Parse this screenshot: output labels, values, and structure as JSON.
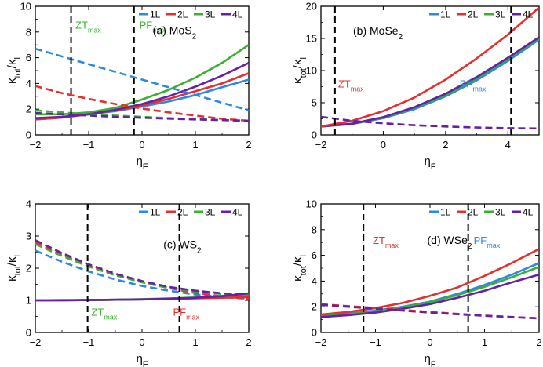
{
  "figure": {
    "ylabel_main": "κ",
    "ylabel_sub1": "tot",
    "ylabel_slash": "/κ",
    "ylabel_sub2": "l",
    "xlabel_main": "η",
    "xlabel_sub": "F"
  },
  "colors": {
    "1L": "#2b88e5",
    "2L": "#e62e2e",
    "3L": "#3ab02e",
    "4L": "#6420a8",
    "marker": "#000000"
  },
  "chart_data": [
    {
      "type": "line",
      "id": "a",
      "title_prefix": "(a) MoS",
      "title_sub": "2",
      "xlim": [
        -2,
        2
      ],
      "ylim": [
        0,
        10
      ],
      "xticks": [
        "−2",
        "−1",
        "0",
        "1",
        "2"
      ],
      "yticks": [
        "0",
        "2",
        "4",
        "6",
        "8",
        "10"
      ],
      "legend": [
        "1L",
        "2L",
        "3L",
        "4L"
      ],
      "vlines": [
        -1.33,
        -0.15
      ],
      "annotations": [
        {
          "main": "ZT",
          "sub": "max",
          "x": -1.25,
          "y": 8.25,
          "color": "3L"
        },
        {
          "main": "PF",
          "sub": "max",
          "x": -0.05,
          "y": 8.25,
          "color": "3L"
        }
      ],
      "x": [
        -2,
        -1.5,
        -1,
        -0.5,
        0,
        0.5,
        1,
        1.5,
        2
      ],
      "series": [
        {
          "name": "1L",
          "style": "solid",
          "values": [
            1.2,
            1.35,
            1.6,
            1.85,
            2.2,
            2.6,
            3.1,
            3.7,
            4.3
          ]
        },
        {
          "name": "2L",
          "style": "solid",
          "values": [
            1.2,
            1.35,
            1.6,
            1.9,
            2.3,
            2.8,
            3.4,
            4.0,
            4.8
          ]
        },
        {
          "name": "3L",
          "style": "solid",
          "values": [
            1.6,
            1.6,
            1.75,
            2.1,
            2.75,
            3.5,
            4.45,
            5.6,
            7.0
          ]
        },
        {
          "name": "4L",
          "style": "solid",
          "values": [
            1.3,
            1.4,
            1.6,
            1.95,
            2.4,
            3.0,
            3.75,
            4.6,
            5.6
          ]
        },
        {
          "name": "1L",
          "style": "dashed",
          "values": [
            6.7,
            6.1,
            5.5,
            4.9,
            4.3,
            3.7,
            3.1,
            2.5,
            1.9
          ]
        },
        {
          "name": "2L",
          "style": "dashed",
          "values": [
            3.8,
            3.25,
            2.8,
            2.4,
            2.05,
            1.75,
            1.5,
            1.25,
            1.1
          ]
        },
        {
          "name": "3L",
          "style": "dashed",
          "values": [
            1.9,
            1.75,
            1.6,
            1.5,
            1.4,
            1.3,
            1.22,
            1.15,
            1.08
          ]
        },
        {
          "name": "4L",
          "style": "dashed",
          "values": [
            1.7,
            1.6,
            1.5,
            1.4,
            1.33,
            1.26,
            1.2,
            1.15,
            1.1
          ]
        }
      ]
    },
    {
      "type": "line",
      "id": "b",
      "title_prefix": "(b) MoSe",
      "title_sub": "2",
      "xlim": [
        -2,
        5
      ],
      "ylim": [
        0,
        20
      ],
      "xticks": [
        "−2",
        "0",
        "2",
        "4"
      ],
      "xtick_values": [
        -2,
        0,
        2,
        4
      ],
      "yticks": [
        "0",
        "5",
        "10",
        "15",
        "20"
      ],
      "legend": [
        "1L",
        "2L",
        "3L",
        "4L"
      ],
      "vlines": [
        -1.55,
        4.1
      ],
      "annotations": [
        {
          "main": "ZT",
          "sub": "max",
          "x": -1.45,
          "y": 7.4,
          "color": "2L"
        },
        {
          "main": "PF",
          "sub": "max",
          "x": 2.45,
          "y": 7.4,
          "color": "1L"
        }
      ],
      "x": [
        -2,
        -1,
        0,
        1,
        2,
        3,
        4,
        5
      ],
      "series": [
        {
          "name": "1L",
          "style": "solid",
          "values": [
            1.3,
            1.7,
            2.6,
            4.0,
            6.0,
            8.5,
            11.5,
            14.8
          ]
        },
        {
          "name": "3L",
          "style": "solid",
          "values": [
            1.3,
            1.7,
            2.7,
            4.2,
            6.2,
            8.8,
            11.8,
            15.0
          ]
        },
        {
          "name": "4L",
          "style": "solid",
          "values": [
            1.3,
            1.75,
            2.75,
            4.3,
            6.4,
            9.0,
            12.0,
            15.2
          ]
        },
        {
          "name": "2L",
          "style": "solid",
          "values": [
            1.3,
            2.2,
            3.7,
            5.8,
            8.6,
            11.9,
            15.6,
            19.8
          ]
        },
        {
          "name": "4L",
          "style": "dashed",
          "values": [
            2.8,
            2.2,
            1.8,
            1.5,
            1.3,
            1.15,
            1.05,
            1.0
          ]
        }
      ]
    },
    {
      "type": "line",
      "id": "c",
      "title_prefix": "(c) WS",
      "title_sub": "2",
      "xlim": [
        -2,
        2
      ],
      "ylim": [
        0,
        4
      ],
      "xticks": [
        "−2",
        "−1",
        "0",
        "1",
        "2"
      ],
      "yticks": [
        "0",
        "1",
        "2",
        "3",
        "4"
      ],
      "legend": [
        "1L",
        "2L",
        "3L",
        "4L"
      ],
      "vlines": [
        -1.02,
        0.7
      ],
      "annotations": [
        {
          "main": "ZT",
          "sub": "max",
          "x": -0.95,
          "y": 0.52,
          "color": "3L"
        },
        {
          "main": "PF",
          "sub": "max",
          "x": 0.58,
          "y": 0.52,
          "color": "2L"
        }
      ],
      "x": [
        -2,
        -1.5,
        -1,
        -0.5,
        0,
        0.5,
        1,
        1.5,
        2
      ],
      "series": [
        {
          "name": "1L",
          "style": "dashed",
          "values": [
            2.55,
            2.2,
            1.9,
            1.65,
            1.45,
            1.3,
            1.18,
            1.1,
            1.05
          ]
        },
        {
          "name": "2L",
          "style": "dashed",
          "values": [
            2.8,
            2.42,
            2.08,
            1.8,
            1.57,
            1.38,
            1.23,
            1.12,
            1.05
          ]
        },
        {
          "name": "3L",
          "style": "dashed",
          "values": [
            2.75,
            2.38,
            2.05,
            1.78,
            1.56,
            1.39,
            1.27,
            1.2,
            1.15
          ]
        },
        {
          "name": "4L",
          "style": "dashed",
          "values": [
            2.87,
            2.47,
            2.12,
            1.83,
            1.6,
            1.42,
            1.3,
            1.22,
            1.17
          ]
        },
        {
          "name": "1L",
          "style": "solid",
          "values": [
            1.0,
            1.0,
            1.01,
            1.02,
            1.03,
            1.05,
            1.08,
            1.12,
            1.18
          ]
        },
        {
          "name": "2L",
          "style": "solid",
          "values": [
            1.0,
            1.01,
            1.01,
            1.02,
            1.03,
            1.04,
            1.06,
            1.08,
            1.1
          ]
        },
        {
          "name": "3L",
          "style": "solid",
          "values": [
            1.0,
            1.0,
            1.01,
            1.02,
            1.04,
            1.06,
            1.09,
            1.14,
            1.2
          ]
        },
        {
          "name": "4L",
          "style": "solid",
          "values": [
            1.0,
            1.0,
            1.01,
            1.02,
            1.03,
            1.05,
            1.08,
            1.13,
            1.22
          ]
        }
      ]
    },
    {
      "type": "line",
      "id": "d",
      "title_prefix": "(d) WSe",
      "title_sub": "2",
      "xlim": [
        -2,
        2
      ],
      "ylim": [
        0,
        10
      ],
      "xticks": [
        "−2",
        "−1",
        "0",
        "1",
        "2"
      ],
      "yticks": [
        "0",
        "2",
        "4",
        "6",
        "8",
        "10"
      ],
      "legend": [
        "1L",
        "2L",
        "3L",
        "4L"
      ],
      "vlines": [
        -1.22,
        0.7
      ],
      "annotations": [
        {
          "main": "ZT",
          "sub": "max",
          "x": -1.05,
          "y": 6.9,
          "color": "2L"
        },
        {
          "main": "PF",
          "sub": "max",
          "x": 0.8,
          "y": 6.9,
          "color": "1L"
        }
      ],
      "x": [
        -2,
        -1.5,
        -1,
        -0.5,
        0,
        0.5,
        1,
        1.5,
        2
      ],
      "series": [
        {
          "name": "1L",
          "style": "solid",
          "values": [
            1.3,
            1.45,
            1.7,
            2.0,
            2.4,
            3.0,
            3.7,
            4.5,
            5.4
          ]
        },
        {
          "name": "3L",
          "style": "solid",
          "values": [
            1.3,
            1.42,
            1.65,
            1.95,
            2.35,
            2.9,
            3.55,
            4.3,
            5.1
          ]
        },
        {
          "name": "4L",
          "style": "solid",
          "values": [
            1.2,
            1.35,
            1.55,
            1.85,
            2.2,
            2.7,
            3.25,
            3.9,
            4.5
          ]
        },
        {
          "name": "2L",
          "style": "solid",
          "values": [
            1.4,
            1.6,
            1.9,
            2.3,
            2.85,
            3.5,
            4.4,
            5.4,
            6.5
          ]
        },
        {
          "name": "2L",
          "style": "dashed",
          "values": [
            2.2,
            2.05,
            1.9,
            1.75,
            1.6,
            1.45,
            1.32,
            1.2,
            1.1
          ]
        },
        {
          "name": "4L",
          "style": "dashed",
          "values": [
            2.15,
            2.0,
            1.85,
            1.7,
            1.55,
            1.42,
            1.3,
            1.2,
            1.1
          ]
        }
      ]
    }
  ]
}
